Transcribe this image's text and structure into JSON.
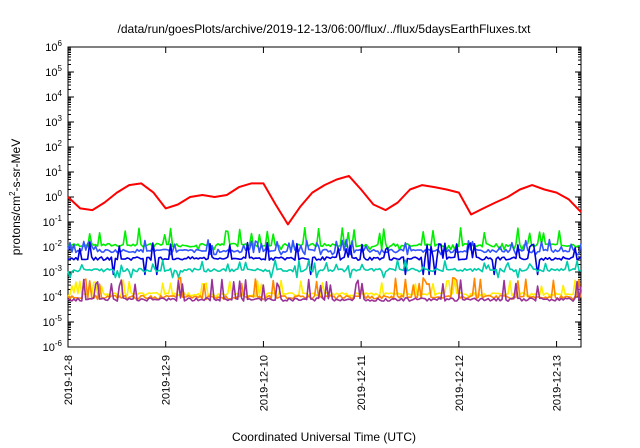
{
  "chart_data": {
    "type": "line",
    "title": "/data/run/goesPlots/archive/2019-12-13/06:00/flux/../flux/5daysEarthFluxes.txt",
    "xlabel": "Coordinated Universal Time (UTC)",
    "ylabel": {
      "base": "protons/cm",
      "sup": "2",
      "rest": "-s-sr-MeV"
    },
    "y_scale": "log",
    "ylim": [
      1e-06,
      1000000.0
    ],
    "y_ticks": [
      {
        "base": "10",
        "exp": "-6",
        "value": 1e-06
      },
      {
        "base": "10",
        "exp": "-5",
        "value": 1e-05
      },
      {
        "base": "10",
        "exp": "-4",
        "value": 0.0001
      },
      {
        "base": "10",
        "exp": "-3",
        "value": 0.001
      },
      {
        "base": "10",
        "exp": "-2",
        "value": 0.01
      },
      {
        "base": "10",
        "exp": "-1",
        "value": 0.1
      },
      {
        "base": "10",
        "exp": "0",
        "value": 1
      },
      {
        "base": "10",
        "exp": "1",
        "value": 10
      },
      {
        "base": "10",
        "exp": "2",
        "value": 100
      },
      {
        "base": "10",
        "exp": "3",
        "value": 1000
      },
      {
        "base": "10",
        "exp": "4",
        "value": 10000
      },
      {
        "base": "10",
        "exp": "5",
        "value": 100000
      },
      {
        "base": "10",
        "exp": "6",
        "value": 1000000
      }
    ],
    "x_ticks": [
      "2019-12-8",
      "2019-12-9",
      "2019-12-10",
      "2019-12-11",
      "2019-12-12",
      "2019-12-13"
    ],
    "xlim": [
      "2019-12-08T00:00",
      "2019-12-13T06:00"
    ],
    "grid": false,
    "legend": "none",
    "series": [
      {
        "color": "#ff0000",
        "x": [
          "2019-12-08T00:00",
          "2019-12-08T03:00",
          "2019-12-08T06:00",
          "2019-12-08T09:00",
          "2019-12-08T12:00",
          "2019-12-08T15:00",
          "2019-12-08T18:00",
          "2019-12-08T21:00",
          "2019-12-09T00:00",
          "2019-12-09T03:00",
          "2019-12-09T06:00",
          "2019-12-09T09:00",
          "2019-12-09T12:00",
          "2019-12-09T15:00",
          "2019-12-09T18:00",
          "2019-12-09T21:00",
          "2019-12-10T00:00",
          "2019-12-10T03:00",
          "2019-12-10T06:00",
          "2019-12-10T09:00",
          "2019-12-10T12:00",
          "2019-12-10T15:00",
          "2019-12-10T18:00",
          "2019-12-10T21:00",
          "2019-12-11T00:00",
          "2019-12-11T03:00",
          "2019-12-11T06:00",
          "2019-12-11T09:00",
          "2019-12-11T12:00",
          "2019-12-11T15:00",
          "2019-12-11T18:00",
          "2019-12-11T21:00",
          "2019-12-12T00:00",
          "2019-12-12T03:00",
          "2019-12-12T06:00",
          "2019-12-12T09:00",
          "2019-12-12T12:00",
          "2019-12-12T15:00",
          "2019-12-12T18:00",
          "2019-12-12T21:00",
          "2019-12-13T00:00",
          "2019-12-13T03:00",
          "2019-12-13T06:00"
        ],
        "values": [
          1.0,
          0.35,
          0.3,
          0.6,
          1.5,
          3.0,
          3.5,
          1.5,
          0.35,
          0.5,
          1.0,
          1.2,
          1.0,
          1.2,
          2.5,
          3.5,
          3.5,
          0.5,
          0.08,
          0.4,
          1.5,
          3.0,
          5.0,
          7.0,
          2.0,
          0.5,
          0.3,
          0.6,
          2.0,
          3.0,
          2.5,
          2.0,
          1.5,
          0.2,
          0.35,
          0.6,
          1.0,
          2.0,
          3.0,
          2.0,
          1.5,
          0.8,
          0.25
        ]
      },
      {
        "color": "#00ee00",
        "x_start": "2019-12-08T00:00",
        "x_end": "2019-12-13T06:00",
        "base": 0.012,
        "hi": 0.06,
        "lo": 0.008
      },
      {
        "color": "#3355ff",
        "x_start": "2019-12-08T00:00",
        "x_end": "2019-12-13T06:00",
        "base": 0.007,
        "hi": 0.02,
        "lo": 0.005
      },
      {
        "color": "#0000dd",
        "x_start": "2019-12-08T00:00",
        "x_end": "2019-12-13T06:00",
        "base": 0.0035,
        "hi": 0.015,
        "lo": 0.0008
      },
      {
        "color": "#00ccaa",
        "x_start": "2019-12-08T00:00",
        "x_end": "2019-12-13T06:00",
        "base": 0.0012,
        "hi": 0.003,
        "lo": 0.0006
      },
      {
        "color": "#ffee00",
        "x_start": "2019-12-08T00:00",
        "x_end": "2019-12-13T06:00",
        "base": 0.00013,
        "hi": 0.0005,
        "lo": 0.0001
      },
      {
        "color": "#ff8800",
        "x_start": "2019-12-08T00:00",
        "x_end": "2019-12-13T06:00",
        "base": 0.0001,
        "hi": 0.0006,
        "lo": 8e-05
      },
      {
        "color": "#993399",
        "x_start": "2019-12-08T00:00",
        "x_end": "2019-12-13T06:00",
        "base": 8e-05,
        "hi": 0.0005,
        "lo": 7e-05
      }
    ]
  }
}
